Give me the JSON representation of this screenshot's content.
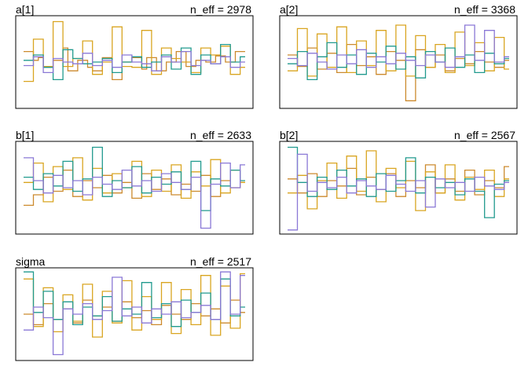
{
  "chart_data": [
    {
      "type": "line",
      "title": "a[1]",
      "annotation": "n_eff = 2978",
      "ylim": [
        0,
        1
      ],
      "series": [
        {
          "color": "#CC8A2E",
          "values": [
            0.62,
            0.62,
            0.52,
            0.55,
            0.44,
            0.44,
            0.52,
            0.52,
            0.66,
            0.4,
            0.4,
            0.52,
            0.52,
            0.44,
            0.4,
            0.4,
            0.55,
            0.55,
            0.3,
            0.3,
            0.5,
            0.5,
            0.55,
            0.55,
            0.42,
            0.55,
            0.55,
            0.4,
            0.4,
            0.5,
            0.5,
            0.62,
            0.62,
            0.45,
            0.45,
            0.52,
            0.52,
            0.5,
            0.5,
            0.57,
            0.57,
            0.5,
            0.5,
            0.62,
            0.62
          ]
        },
        {
          "color": "#D9A521",
          "values": [
            0.28,
            0.28,
            0.76,
            0.76,
            0.45,
            0.45,
            0.96,
            0.96,
            0.45,
            0.45,
            0.54,
            0.54,
            0.74,
            0.74,
            0.36,
            0.36,
            0.5,
            0.5,
            0.9,
            0.9,
            0.45,
            0.45,
            0.44,
            0.44,
            0.86,
            0.86,
            0.36,
            0.36,
            0.66,
            0.66,
            0.54,
            0.54,
            0.5,
            0.5,
            0.38,
            0.38,
            0.66,
            0.66,
            0.58,
            0.58,
            0.68,
            0.68,
            0.36,
            0.36,
            0.44
          ]
        },
        {
          "color": "#219A8E",
          "values": [
            0.52,
            0.52,
            0.58,
            0.58,
            0.44,
            0.44,
            0.3,
            0.3,
            0.64,
            0.64,
            0.54,
            0.54,
            0.48,
            0.48,
            0.5,
            0.5,
            0.54,
            0.54,
            0.38,
            0.38,
            0.5,
            0.5,
            0.56,
            0.56,
            0.44,
            0.44,
            0.5,
            0.5,
            0.58,
            0.58,
            0.42,
            0.42,
            0.66,
            0.66,
            0.36,
            0.36,
            0.58,
            0.58,
            0.48,
            0.48,
            0.7,
            0.7,
            0.5,
            0.5,
            0.56
          ]
        },
        {
          "color": "#8A78D6",
          "values": [
            0.46,
            0.46,
            0.56,
            0.56,
            0.38,
            0.38,
            0.54,
            0.54,
            0.5,
            0.5,
            0.48,
            0.48,
            0.6,
            0.6,
            0.46,
            0.46,
            0.52,
            0.52,
            0.44,
            0.44,
            0.58,
            0.58,
            0.5,
            0.5,
            0.48,
            0.48,
            0.4,
            0.4,
            0.56,
            0.56,
            0.5,
            0.5,
            0.62,
            0.62,
            0.46,
            0.46,
            0.52,
            0.52,
            0.48,
            0.48,
            0.56,
            0.56,
            0.44,
            0.44,
            0.5
          ]
        }
      ]
    },
    {
      "type": "line",
      "title": "a[2]",
      "annotation": "n_eff = 3368",
      "ylim": [
        0,
        1
      ],
      "series": [
        {
          "color": "#CC8A2E",
          "values": [
            0.58,
            0.58,
            0.45,
            0.45,
            0.66,
            0.66,
            0.42,
            0.42,
            0.6,
            0.6,
            0.38,
            0.38,
            0.7,
            0.7,
            0.46,
            0.46,
            0.56,
            0.56,
            0.36,
            0.36,
            0.62,
            0.62,
            0.52,
            0.52,
            0.06,
            0.06,
            0.64,
            0.64,
            0.44,
            0.44,
            0.58,
            0.58,
            0.4,
            0.4,
            0.54,
            0.54,
            0.48,
            0.48,
            0.62,
            0.62,
            0.5,
            0.5,
            0.44,
            0.44,
            0.52
          ]
        },
        {
          "color": "#D9A521",
          "values": [
            0.4,
            0.4,
            0.88,
            0.88,
            0.34,
            0.34,
            0.82,
            0.82,
            0.44,
            0.44,
            0.9,
            0.9,
            0.38,
            0.38,
            0.74,
            0.74,
            0.46,
            0.46,
            0.86,
            0.86,
            0.4,
            0.4,
            0.92,
            0.92,
            0.34,
            0.34,
            0.8,
            0.8,
            0.44,
            0.44,
            0.7,
            0.7,
            0.38,
            0.38,
            0.84,
            0.84,
            0.46,
            0.46,
            0.72,
            0.72,
            0.4,
            0.4,
            0.78,
            0.78,
            0.42
          ]
        },
        {
          "color": "#219A8E",
          "values": [
            0.48,
            0.48,
            0.62,
            0.62,
            0.3,
            0.3,
            0.56,
            0.56,
            0.72,
            0.72,
            0.44,
            0.44,
            0.58,
            0.58,
            0.36,
            0.36,
            0.6,
            0.6,
            0.5,
            0.5,
            0.68,
            0.68,
            0.42,
            0.42,
            0.56,
            0.56,
            0.32,
            0.32,
            0.62,
            0.62,
            0.5,
            0.5,
            0.66,
            0.66,
            0.44,
            0.44,
            0.58,
            0.58,
            0.38,
            0.38,
            0.6,
            0.6,
            0.48,
            0.48,
            0.54
          ]
        },
        {
          "color": "#8A78D6",
          "values": [
            0.54,
            0.54,
            0.46,
            0.46,
            0.6,
            0.6,
            0.5,
            0.5,
            0.42,
            0.42,
            0.58,
            0.58,
            0.48,
            0.48,
            0.64,
            0.64,
            0.44,
            0.44,
            0.56,
            0.56,
            0.48,
            0.48,
            0.6,
            0.6,
            0.52,
            0.52,
            0.46,
            0.46,
            0.58,
            0.58,
            0.5,
            0.5,
            0.44,
            0.44,
            0.56,
            0.56,
            0.92,
            0.92,
            0.52,
            0.52,
            0.86,
            0.86,
            0.5,
            0.5,
            0.56
          ]
        }
      ]
    },
    {
      "type": "line",
      "title": "b[1]",
      "annotation": "n_eff = 2633",
      "ylim": [
        0,
        1
      ],
      "series": [
        {
          "color": "#CC8A2E",
          "values": [
            0.3,
            0.3,
            0.42,
            0.42,
            0.62,
            0.62,
            0.46,
            0.46,
            0.7,
            0.7,
            0.4,
            0.4,
            0.58,
            0.58,
            0.5,
            0.5,
            0.64,
            0.64,
            0.44,
            0.44,
            0.56,
            0.56,
            0.38,
            0.38,
            0.66,
            0.66,
            0.48,
            0.48,
            0.6,
            0.6,
            0.42,
            0.42,
            0.54,
            0.54,
            0.46,
            0.46,
            0.64,
            0.64,
            0.4,
            0.4,
            0.58,
            0.58,
            0.5,
            0.5,
            0.56
          ]
        },
        {
          "color": "#D9A521",
          "values": [
            0.56,
            0.56,
            0.78,
            0.78,
            0.34,
            0.34,
            0.74,
            0.74,
            0.48,
            0.48,
            0.84,
            0.84,
            0.36,
            0.36,
            0.72,
            0.72,
            0.44,
            0.44,
            0.66,
            0.66,
            0.5,
            0.5,
            0.8,
            0.8,
            0.4,
            0.4,
            0.7,
            0.7,
            0.46,
            0.46,
            0.76,
            0.76,
            0.38,
            0.38,
            0.68,
            0.68,
            0.52,
            0.52,
            0.82,
            0.82,
            0.44,
            0.44,
            0.7,
            0.7,
            0.56
          ]
        },
        {
          "color": "#219A8E",
          "values": [
            0.62,
            0.62,
            0.48,
            0.48,
            0.66,
            0.66,
            0.52,
            0.52,
            0.8,
            0.8,
            0.46,
            0.46,
            0.6,
            0.6,
            0.96,
            0.96,
            0.4,
            0.4,
            0.58,
            0.58,
            0.5,
            0.5,
            0.74,
            0.74,
            0.44,
            0.44,
            0.62,
            0.62,
            0.54,
            0.54,
            0.68,
            0.68,
            0.48,
            0.48,
            0.8,
            0.8,
            0.24,
            0.24,
            0.6,
            0.6,
            0.52,
            0.52,
            0.7,
            0.7,
            0.58
          ]
        },
        {
          "color": "#8A78D6",
          "values": [
            0.84,
            0.84,
            0.58,
            0.58,
            0.44,
            0.44,
            0.64,
            0.64,
            0.5,
            0.5,
            0.58,
            0.58,
            0.42,
            0.42,
            0.62,
            0.62,
            0.54,
            0.54,
            0.48,
            0.48,
            0.7,
            0.7,
            0.52,
            0.52,
            0.58,
            0.58,
            0.46,
            0.46,
            0.66,
            0.66,
            0.56,
            0.56,
            0.48,
            0.48,
            0.62,
            0.62,
            0.04,
            0.04,
            0.54,
            0.54,
            0.78,
            0.78,
            0.5,
            0.5,
            0.76
          ]
        }
      ]
    },
    {
      "type": "line",
      "title": "b[2]",
      "annotation": "n_eff = 2567",
      "ylim": [
        0,
        1
      ],
      "series": [
        {
          "color": "#CC8A2E",
          "values": [
            0.6,
            0.6,
            0.44,
            0.44,
            0.66,
            0.66,
            0.4,
            0.4,
            0.58,
            0.58,
            0.52,
            0.52,
            0.72,
            0.72,
            0.42,
            0.42,
            0.62,
            0.62,
            0.48,
            0.48,
            0.66,
            0.66,
            0.4,
            0.4,
            0.58,
            0.58,
            0.5,
            0.5,
            0.76,
            0.76,
            0.44,
            0.44,
            0.6,
            0.6,
            0.46,
            0.46,
            0.7,
            0.7,
            0.42,
            0.42,
            0.58,
            0.58,
            0.5,
            0.5,
            0.74
          ]
        },
        {
          "color": "#D9A521",
          "values": [
            0.44,
            0.44,
            0.64,
            0.64,
            0.26,
            0.26,
            0.58,
            0.58,
            0.78,
            0.78,
            0.38,
            0.38,
            0.86,
            0.86,
            0.46,
            0.46,
            0.92,
            0.92,
            0.34,
            0.34,
            0.72,
            0.72,
            0.5,
            0.5,
            0.8,
            0.8,
            0.24,
            0.24,
            0.68,
            0.68,
            0.44,
            0.44,
            0.76,
            0.76,
            0.36,
            0.36,
            0.62,
            0.62,
            0.48,
            0.48,
            0.7,
            0.7,
            0.4,
            0.4,
            0.6
          ]
        },
        {
          "color": "#219A8E",
          "values": [
            0.96,
            0.96,
            0.56,
            0.56,
            0.4,
            0.4,
            0.62,
            0.62,
            0.48,
            0.48,
            0.7,
            0.7,
            0.52,
            0.52,
            0.6,
            0.6,
            0.4,
            0.4,
            0.66,
            0.66,
            0.46,
            0.46,
            0.58,
            0.58,
            0.84,
            0.84,
            0.44,
            0.44,
            0.62,
            0.62,
            0.5,
            0.5,
            0.56,
            0.56,
            0.42,
            0.42,
            0.6,
            0.6,
            0.46,
            0.46,
            0.16,
            0.16,
            0.54,
            0.54,
            0.58
          ]
        },
        {
          "color": "#8A78D6",
          "values": [
            0.02,
            0.02,
            0.88,
            0.88,
            0.46,
            0.46,
            0.56,
            0.56,
            0.5,
            0.5,
            0.62,
            0.62,
            0.44,
            0.44,
            0.58,
            0.58,
            0.52,
            0.52,
            0.48,
            0.48,
            0.64,
            0.64,
            0.54,
            0.54,
            0.46,
            0.46,
            0.58,
            0.58,
            0.28,
            0.28,
            0.6,
            0.6,
            0.5,
            0.5,
            0.56,
            0.56,
            0.46,
            0.46,
            0.62,
            0.62,
            0.52,
            0.52,
            0.48,
            0.48,
            0.56
          ]
        }
      ]
    },
    {
      "type": "line",
      "title": "sigma",
      "annotation": "n_eff = 2517",
      "ylim": [
        0,
        1
      ],
      "series": [
        {
          "color": "#CC8A2E",
          "values": [
            0.5,
            0.5,
            0.38,
            0.38,
            0.62,
            0.62,
            0.44,
            0.44,
            0.56,
            0.56,
            0.4,
            0.4,
            0.66,
            0.66,
            0.48,
            0.48,
            0.58,
            0.58,
            0.42,
            0.42,
            0.64,
            0.64,
            0.46,
            0.46,
            0.54,
            0.54,
            0.38,
            0.38,
            0.6,
            0.6,
            0.5,
            0.5,
            0.44,
            0.44,
            0.62,
            0.62,
            0.48,
            0.48,
            0.56,
            0.56,
            0.4,
            0.4,
            0.66,
            0.66,
            0.52
          ]
        },
        {
          "color": "#D9A521",
          "values": [
            0.9,
            0.9,
            0.36,
            0.36,
            0.8,
            0.8,
            0.3,
            0.3,
            0.72,
            0.72,
            0.42,
            0.42,
            0.84,
            0.84,
            0.24,
            0.24,
            0.76,
            0.76,
            0.4,
            0.4,
            0.88,
            0.88,
            0.32,
            0.32,
            0.7,
            0.7,
            0.44,
            0.44,
            0.86,
            0.86,
            0.28,
            0.28,
            0.78,
            0.78,
            0.38,
            0.38,
            0.94,
            0.94,
            0.26,
            0.26,
            0.82,
            0.82,
            0.34,
            0.34,
            0.96
          ]
        },
        {
          "color": "#219A8E",
          "values": [
            0.98,
            0.98,
            0.52,
            0.52,
            0.76,
            0.76,
            0.44,
            0.44,
            0.64,
            0.64,
            0.38,
            0.38,
            0.58,
            0.58,
            0.48,
            0.48,
            0.7,
            0.7,
            0.42,
            0.42,
            0.56,
            0.56,
            0.5,
            0.5,
            0.86,
            0.86,
            0.46,
            0.46,
            0.62,
            0.62,
            0.36,
            0.36,
            0.66,
            0.66,
            0.52,
            0.52,
            0.74,
            0.74,
            0.44,
            0.44,
            0.9,
            0.9,
            0.48,
            0.48,
            0.58
          ]
        },
        {
          "color": "#8A78D6",
          "values": [
            0.32,
            0.32,
            0.58,
            0.58,
            0.46,
            0.46,
            0.04,
            0.04,
            0.56,
            0.56,
            0.5,
            0.5,
            0.62,
            0.62,
            0.44,
            0.44,
            0.54,
            0.54,
            0.92,
            0.92,
            0.48,
            0.48,
            0.58,
            0.58,
            0.4,
            0.4,
            0.56,
            0.56,
            0.5,
            0.5,
            0.64,
            0.64,
            0.46,
            0.46,
            0.52,
            0.52,
            0.6,
            0.6,
            0.44,
            0.44,
            0.98,
            0.98,
            0.5,
            0.5,
            0.94
          ]
        }
      ]
    }
  ]
}
